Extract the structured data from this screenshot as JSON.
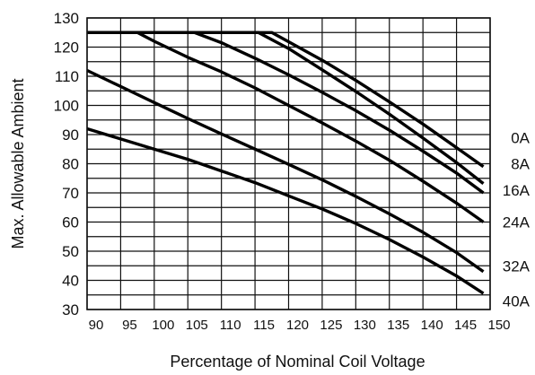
{
  "chart_data": {
    "type": "line",
    "title": "",
    "xlabel": "Percentage of Nominal Coil Voltage",
    "ylabel": "Max. Allowable Ambient",
    "xlim": [
      90,
      150
    ],
    "ylim": [
      30,
      130
    ],
    "x_ticks": [
      90,
      95,
      100,
      105,
      110,
      115,
      120,
      125,
      130,
      135,
      140,
      145,
      150
    ],
    "y_ticks": [
      30,
      40,
      50,
      60,
      70,
      80,
      90,
      100,
      110,
      120,
      130
    ],
    "grid": true,
    "series": [
      {
        "name": "0A",
        "x": [
          90,
          117.5,
          125,
          130,
          135,
          140,
          145,
          149
        ],
        "y": [
          125,
          125,
          115.5,
          108.6,
          101.2,
          93.6,
          85.5,
          79
        ]
      },
      {
        "name": "8A",
        "x": [
          90,
          115.5,
          120,
          125,
          130,
          135,
          140,
          145,
          149
        ],
        "y": [
          125,
          125,
          119.5,
          112.2,
          104.8,
          97,
          88.8,
          80.4,
          73.2
        ]
      },
      {
        "name": "16A",
        "x": [
          90,
          106,
          110,
          115,
          120,
          125,
          130,
          135,
          140,
          145,
          149
        ],
        "y": [
          125,
          125,
          121.5,
          116.2,
          110.5,
          104.5,
          98.2,
          91.5,
          84.3,
          76.8,
          70
        ]
      },
      {
        "name": "24A",
        "x": [
          90,
          97.5,
          100,
          105,
          110,
          115,
          120,
          125,
          130,
          135,
          140,
          145,
          149
        ],
        "y": [
          125,
          125,
          122,
          116.5,
          111.5,
          106,
          100,
          94,
          87.8,
          81.2,
          74,
          66.5,
          60
        ]
      },
      {
        "name": "32A",
        "x": [
          90,
          95,
          100,
          105,
          110,
          115,
          120,
          125,
          130,
          135,
          140,
          145,
          149
        ],
        "y": [
          112,
          106.5,
          101,
          95.5,
          90.2,
          85,
          79.8,
          74.5,
          68.8,
          62.8,
          56.5,
          49.5,
          43
        ]
      },
      {
        "name": "40A",
        "x": [
          90,
          95,
          100,
          105,
          110,
          115,
          120,
          125,
          130,
          135,
          140,
          145,
          149
        ],
        "y": [
          92,
          88.5,
          85,
          81.5,
          77.5,
          73.5,
          69,
          64.5,
          59.5,
          54,
          48,
          41.5,
          35.5
        ]
      }
    ]
  }
}
